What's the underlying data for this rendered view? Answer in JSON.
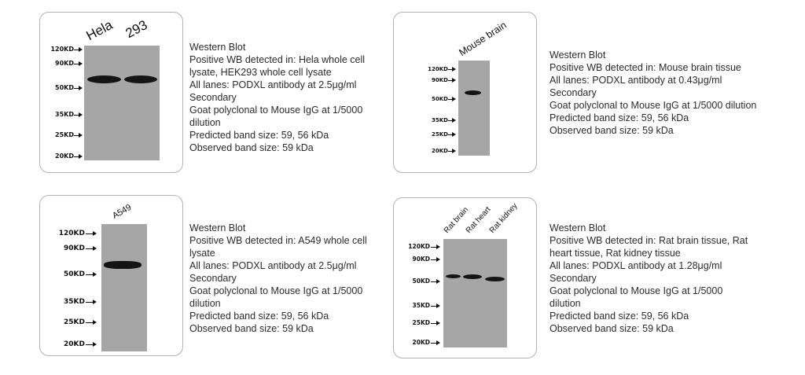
{
  "panels": [
    {
      "lanes": [
        "Hela",
        "293"
      ],
      "markers": [
        "120KD",
        "90KD",
        "50KD",
        "35KD",
        "25KD",
        "20KD"
      ],
      "description": [
        "Western Blot",
        "Positive WB detected in: Hela whole cell",
        "lysate, HEK293 whole cell lysate",
        "All lanes: PODXL antibody at 2.5μg/ml",
        "Secondary",
        "Goat polyclonal to Mouse IgG at 1/5000",
        "dilution",
        "Predicted band size: 59, 56 kDa",
        "Observed band size: 59 kDa"
      ]
    },
    {
      "lanes": [
        "Mouse brain"
      ],
      "markers": [
        "120KD",
        "90KD",
        "50KD",
        "35KD",
        "25KD",
        "20KD"
      ],
      "description": [
        "Western Blot",
        "Positive WB detected in: Mouse brain tissue",
        "All lanes: PODXL antibody at 0.43μg/ml",
        "Secondary",
        "Goat polyclonal to Mouse IgG at 1/5000 dilution",
        "Predicted band size: 59, 56 kDa",
        "Observed band size: 59 kDa"
      ]
    },
    {
      "lanes": [
        "A549"
      ],
      "markers": [
        "120KD",
        "90KD",
        "50KD",
        "35KD",
        "25KD",
        "20KD"
      ],
      "description": [
        "Western Blot",
        "Positive WB detected in: A549 whole cell",
        "lysate",
        "All lanes: PODXL antibody at 2.5μg/ml",
        "Secondary",
        "Goat polyclonal to Mouse IgG at 1/5000",
        "dilution",
        "Predicted band size: 59, 56 kDa",
        "Observed band size: 59 kDa"
      ]
    },
    {
      "lanes": [
        "Rat brain",
        "Rat heart",
        "Rat kidney"
      ],
      "markers": [
        "120KD",
        "90KD",
        "50KD",
        "35KD",
        "25KD",
        "20KD"
      ],
      "description": [
        "Western Blot",
        "Positive WB detected in: Rat brain tissue, Rat",
        "heart tissue, Rat kidney tissue",
        "All lanes: PODXL antibody at 1.28μg/ml",
        "Secondary",
        "Goat polyclonal to Mouse IgG at 1/5000",
        "dilution",
        "Predicted band size: 59, 56 kDa",
        "Observed band size: 59 kDa"
      ]
    }
  ]
}
